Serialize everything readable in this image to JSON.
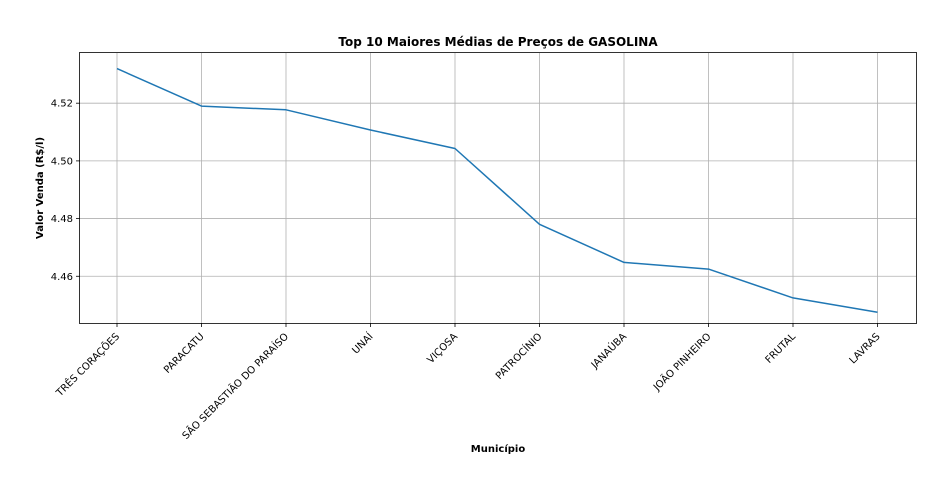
{
  "chart_data": {
    "type": "line",
    "title": "Top 10 Maiores Médias de Preços de GASOLINA",
    "xlabel": "Município",
    "ylabel": "Valor Venda (R$/l)",
    "categories": [
      "TRÊS CORAÇÕES",
      "PARACATU",
      "SÃO SEBASTIÃO DO PARAÍSO",
      "UNAÍ",
      "VIÇOSA",
      "PATROCÍNIO",
      "JANAÚBA",
      "JOÃO PINHEIRO",
      "FRUTAL",
      "LAVRAS"
    ],
    "series": [
      {
        "values": [
          4.532,
          4.519,
          4.5177,
          4.5107,
          4.5043,
          4.478,
          4.4648,
          4.4625,
          4.4525,
          4.4475
        ],
        "color": "#1f77b4"
      }
    ],
    "ylim": [
      4.4438,
      4.5374
    ],
    "yticks": [
      4.46,
      4.48,
      4.5,
      4.52
    ],
    "ytick_labels": [
      "4.46",
      "4.48",
      "4.50",
      "4.52"
    ],
    "grid": true,
    "x_tick_rotation_deg": 45
  }
}
